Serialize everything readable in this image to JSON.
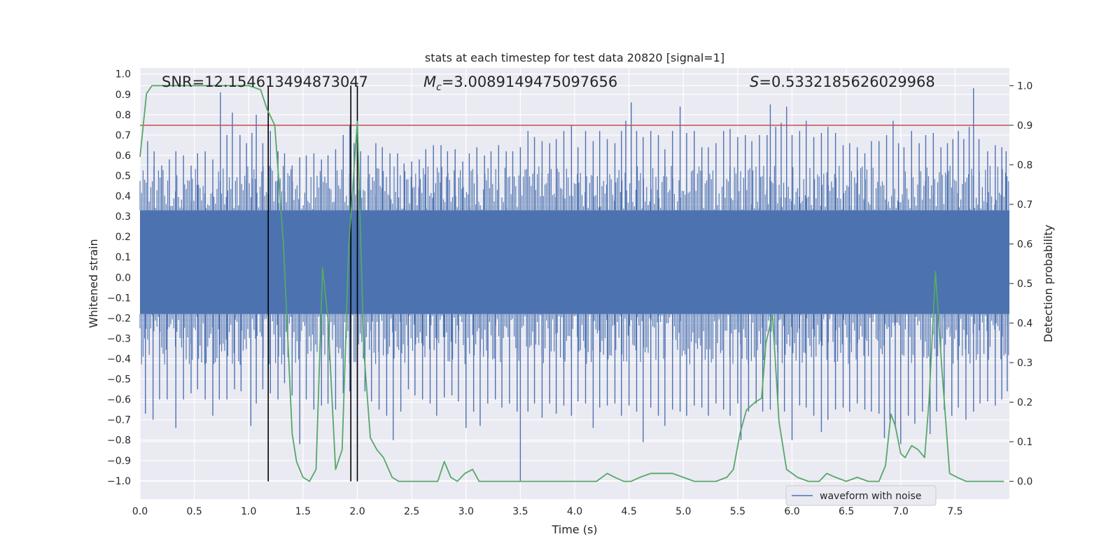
{
  "chart_data": {
    "type": "line",
    "title": "stats at each timestep for test data 20820 [signal=1]",
    "xlabel": "Time (s)",
    "ylabel": "Whitened strain",
    "y2label": "Detection probability",
    "xlim": [
      0.0,
      8.0
    ],
    "ylim": [
      -1.09,
      1.03
    ],
    "y2lim": [
      -0.045,
      1.045
    ],
    "x_ticks": [
      0.0,
      0.5,
      1.0,
      1.5,
      2.0,
      2.5,
      3.0,
      3.5,
      4.0,
      4.5,
      5.0,
      5.5,
      6.0,
      6.5,
      7.0,
      7.5
    ],
    "x_tick_labels": [
      "0.0",
      "0.5",
      "1.0",
      "1.5",
      "2.0",
      "2.5",
      "3.0",
      "3.5",
      "4.0",
      "4.5",
      "5.0",
      "5.5",
      "6.0",
      "6.5",
      "7.0",
      "7.5"
    ],
    "y_ticks": [
      1.0,
      0.9,
      0.8,
      0.7,
      0.6,
      0.5,
      0.4,
      0.3,
      0.2,
      0.1,
      0.0,
      -0.1,
      -0.2,
      -0.3,
      -0.4,
      -0.5,
      -0.6,
      -0.7,
      -0.8,
      -0.9,
      -1.0
    ],
    "y_tick_labels": [
      "1.0",
      "0.9",
      "0.8",
      "0.7",
      "0.6",
      "0.5",
      "0.4",
      "0.3",
      "0.2",
      "0.1",
      "0.0",
      "−0.1",
      "−0.2",
      "−0.3",
      "−0.4",
      "−0.5",
      "−0.6",
      "−0.7",
      "−0.8",
      "−0.9",
      "−1.0"
    ],
    "y2_ticks": [
      1.0,
      0.9,
      0.8,
      0.7,
      0.6,
      0.5,
      0.4,
      0.3,
      0.2,
      0.1,
      0.0
    ],
    "y2_tick_labels": [
      "1.0",
      "0.9",
      "0.8",
      "0.7",
      "0.6",
      "0.5",
      "0.4",
      "0.3",
      "0.2",
      "0.1",
      "0.0"
    ],
    "grid": true,
    "annotations": {
      "snr": "SNR=12.154613494873047",
      "mc_symbol": "M",
      "mc_subscript": "c",
      "mc_value": "=3.0089149475097656",
      "s_symbol": "S",
      "s_value": "=0.5332185626029968"
    },
    "threshold": {
      "value": 0.9,
      "axis": "y2",
      "color": "#c44e52"
    },
    "vertical_lines": [
      1.18,
      1.94,
      2.0
    ],
    "waveform": {
      "name": "waveform with noise",
      "color": "#4c72b0",
      "band_low": -0.18,
      "band_high": 0.33,
      "spikes": [
        [
          0.07,
          0.67
        ],
        [
          0.13,
          0.62
        ],
        [
          0.2,
          0.55
        ],
        [
          0.27,
          0.58
        ],
        [
          0.33,
          0.62
        ],
        [
          0.4,
          0.6
        ],
        [
          0.47,
          0.55
        ],
        [
          0.53,
          0.61
        ],
        [
          0.6,
          0.62
        ],
        [
          0.67,
          0.58
        ],
        [
          0.74,
          0.91
        ],
        [
          0.8,
          0.7
        ],
        [
          0.85,
          0.81
        ],
        [
          0.92,
          0.7
        ],
        [
          0.98,
          0.66
        ],
        [
          1.03,
          0.71
        ],
        [
          1.07,
          0.8
        ],
        [
          1.13,
          0.66
        ],
        [
          1.2,
          0.72
        ],
        [
          1.27,
          0.62
        ],
        [
          1.33,
          0.61
        ],
        [
          1.4,
          0.55
        ],
        [
          1.47,
          0.59
        ],
        [
          1.53,
          0.6
        ],
        [
          1.6,
          0.61
        ],
        [
          1.67,
          0.58
        ],
        [
          1.73,
          0.6
        ],
        [
          1.8,
          0.63
        ],
        [
          1.87,
          0.7
        ],
        [
          1.93,
          0.75
        ],
        [
          1.97,
          0.66
        ],
        [
          2.03,
          0.62
        ],
        [
          2.1,
          0.6
        ],
        [
          2.17,
          0.66
        ],
        [
          2.23,
          0.64
        ],
        [
          2.3,
          0.61
        ],
        [
          2.37,
          0.61
        ],
        [
          2.43,
          0.56
        ],
        [
          2.5,
          0.57
        ],
        [
          2.57,
          0.58
        ],
        [
          2.63,
          0.63
        ],
        [
          2.7,
          0.65
        ],
        [
          2.77,
          0.65
        ],
        [
          2.83,
          0.62
        ],
        [
          2.9,
          0.63
        ],
        [
          2.97,
          0.57
        ],
        [
          3.03,
          0.61
        ],
        [
          3.1,
          0.64
        ],
        [
          3.17,
          0.6
        ],
        [
          3.23,
          0.62
        ],
        [
          3.3,
          0.65
        ],
        [
          3.37,
          0.62
        ],
        [
          3.43,
          0.62
        ],
        [
          3.5,
          0.64
        ],
        [
          3.57,
          0.72
        ],
        [
          3.63,
          0.69
        ],
        [
          3.7,
          0.67
        ],
        [
          3.77,
          0.66
        ],
        [
          3.83,
          0.68
        ],
        [
          3.9,
          0.72
        ],
        [
          3.97,
          0.75
        ],
        [
          4.03,
          0.64
        ],
        [
          4.1,
          0.72
        ],
        [
          4.17,
          0.67
        ],
        [
          4.23,
          0.72
        ],
        [
          4.3,
          0.68
        ],
        [
          4.37,
          0.66
        ],
        [
          4.43,
          0.72
        ],
        [
          4.47,
          0.77
        ],
        [
          4.52,
          0.86
        ],
        [
          4.57,
          0.72
        ],
        [
          4.63,
          0.69
        ],
        [
          4.7,
          0.72
        ],
        [
          4.77,
          0.7
        ],
        [
          4.83,
          0.63
        ],
        [
          4.9,
          0.72
        ],
        [
          4.97,
          0.84
        ],
        [
          5.03,
          0.71
        ],
        [
          5.1,
          0.72
        ],
        [
          5.17,
          0.64
        ],
        [
          5.23,
          0.64
        ],
        [
          5.3,
          0.66
        ],
        [
          5.37,
          0.72
        ],
        [
          5.43,
          0.73
        ],
        [
          5.5,
          0.69
        ],
        [
          5.57,
          0.7
        ],
        [
          5.63,
          0.67
        ],
        [
          5.7,
          0.7
        ],
        [
          5.77,
          0.7
        ],
        [
          5.8,
          0.85
        ],
        [
          5.85,
          0.74
        ],
        [
          5.9,
          0.76
        ],
        [
          5.95,
          0.84
        ],
        [
          6.0,
          0.7
        ],
        [
          6.07,
          0.72
        ],
        [
          6.13,
          0.77
        ],
        [
          6.2,
          0.69
        ],
        [
          6.27,
          0.71
        ],
        [
          6.33,
          0.74
        ],
        [
          6.4,
          0.71
        ],
        [
          6.47,
          0.65
        ],
        [
          6.53,
          0.66
        ],
        [
          6.6,
          0.64
        ],
        [
          6.67,
          0.61
        ],
        [
          6.73,
          0.67
        ],
        [
          6.8,
          0.67
        ],
        [
          6.87,
          0.7
        ],
        [
          6.93,
          0.77
        ],
        [
          6.98,
          0.66
        ],
        [
          7.03,
          0.64
        ],
        [
          7.1,
          0.72
        ],
        [
          7.17,
          0.66
        ],
        [
          7.23,
          0.7
        ],
        [
          7.3,
          0.71
        ],
        [
          7.37,
          0.64
        ],
        [
          7.43,
          0.66
        ],
        [
          7.48,
          0.68
        ],
        [
          7.53,
          0.72
        ],
        [
          7.58,
          0.68
        ],
        [
          7.63,
          0.74
        ],
        [
          7.67,
          0.93
        ],
        [
          7.72,
          0.68
        ],
        [
          7.8,
          0.62
        ],
        [
          7.87,
          0.65
        ],
        [
          7.93,
          0.64
        ],
        [
          7.97,
          0.62
        ],
        [
          0.05,
          -0.67
        ],
        [
          0.12,
          -0.7
        ],
        [
          0.18,
          -0.6
        ],
        [
          0.25,
          -0.6
        ],
        [
          0.33,
          -0.74
        ],
        [
          0.4,
          -0.6
        ],
        [
          0.47,
          -0.57
        ],
        [
          0.53,
          -0.55
        ],
        [
          0.6,
          -0.6
        ],
        [
          0.67,
          -0.68
        ],
        [
          0.73,
          -0.6
        ],
        [
          0.8,
          -0.6
        ],
        [
          0.87,
          -0.55
        ],
        [
          0.93,
          -0.56
        ],
        [
          1.02,
          -0.73
        ],
        [
          1.07,
          -0.62
        ],
        [
          1.13,
          -0.55
        ],
        [
          1.2,
          -0.57
        ],
        [
          1.27,
          -0.6
        ],
        [
          1.33,
          -0.52
        ],
        [
          1.4,
          -0.58
        ],
        [
          1.47,
          -0.82
        ],
        [
          1.53,
          -0.6
        ],
        [
          1.6,
          -0.65
        ],
        [
          1.67,
          -0.63
        ],
        [
          1.73,
          -0.62
        ],
        [
          1.8,
          -0.65
        ],
        [
          1.87,
          -0.57
        ],
        [
          1.93,
          -0.56
        ],
        [
          2.0,
          -0.6
        ],
        [
          2.07,
          -0.56
        ],
        [
          2.13,
          -0.61
        ],
        [
          2.2,
          -0.65
        ],
        [
          2.27,
          -0.68
        ],
        [
          2.33,
          -0.8
        ],
        [
          2.4,
          -0.66
        ],
        [
          2.47,
          -0.55
        ],
        [
          2.53,
          -0.58
        ],
        [
          2.6,
          -0.6
        ],
        [
          2.67,
          -0.62
        ],
        [
          2.73,
          -0.68
        ],
        [
          2.8,
          -0.59
        ],
        [
          2.87,
          -0.58
        ],
        [
          2.93,
          -0.61
        ],
        [
          3.0,
          -0.74
        ],
        [
          3.07,
          -0.66
        ],
        [
          3.13,
          -0.73
        ],
        [
          3.2,
          -0.62
        ],
        [
          3.27,
          -0.6
        ],
        [
          3.33,
          -0.64
        ],
        [
          3.4,
          -0.62
        ],
        [
          3.47,
          -0.66
        ],
        [
          3.5,
          -1.0
        ],
        [
          3.57,
          -0.66
        ],
        [
          3.63,
          -0.62
        ],
        [
          3.7,
          -0.69
        ],
        [
          3.77,
          -0.62
        ],
        [
          3.83,
          -0.67
        ],
        [
          3.9,
          -0.63
        ],
        [
          3.97,
          -0.68
        ],
        [
          4.03,
          -0.61
        ],
        [
          4.1,
          -0.62
        ],
        [
          4.17,
          -0.74
        ],
        [
          4.23,
          -0.64
        ],
        [
          4.3,
          -0.63
        ],
        [
          4.37,
          -0.62
        ],
        [
          4.43,
          -0.68
        ],
        [
          4.5,
          -0.63
        ],
        [
          4.57,
          -0.66
        ],
        [
          4.63,
          -0.81
        ],
        [
          4.7,
          -0.64
        ],
        [
          4.77,
          -0.68
        ],
        [
          4.83,
          -0.73
        ],
        [
          4.9,
          -0.65
        ],
        [
          4.97,
          -0.66
        ],
        [
          5.03,
          -0.68
        ],
        [
          5.1,
          -0.63
        ],
        [
          5.17,
          -0.64
        ],
        [
          5.23,
          -0.68
        ],
        [
          5.3,
          -0.62
        ],
        [
          5.37,
          -0.65
        ],
        [
          5.43,
          -0.68
        ],
        [
          5.5,
          -0.62
        ],
        [
          5.53,
          -0.8
        ],
        [
          5.6,
          -0.66
        ],
        [
          5.67,
          -0.62
        ],
        [
          5.73,
          -0.66
        ],
        [
          5.8,
          -0.65
        ],
        [
          5.87,
          -0.63
        ],
        [
          5.93,
          -0.66
        ],
        [
          6.0,
          -0.8
        ],
        [
          6.07,
          -0.63
        ],
        [
          6.13,
          -0.64
        ],
        [
          6.2,
          -0.68
        ],
        [
          6.27,
          -0.76
        ],
        [
          6.33,
          -0.7
        ],
        [
          6.4,
          -0.65
        ],
        [
          6.47,
          -0.64
        ],
        [
          6.53,
          -0.66
        ],
        [
          6.6,
          -0.62
        ],
        [
          6.67,
          -0.65
        ],
        [
          6.73,
          -0.66
        ],
        [
          6.8,
          -0.67
        ],
        [
          6.85,
          -0.79
        ],
        [
          6.9,
          -0.7
        ],
        [
          6.95,
          -0.74
        ],
        [
          7.0,
          -0.82
        ],
        [
          7.07,
          -0.68
        ],
        [
          7.13,
          -0.72
        ],
        [
          7.2,
          -0.66
        ],
        [
          7.27,
          -0.77
        ],
        [
          7.33,
          -0.66
        ],
        [
          7.4,
          -0.65
        ],
        [
          7.47,
          -0.68
        ],
        [
          7.53,
          -0.64
        ],
        [
          7.6,
          -0.7
        ],
        [
          7.67,
          -0.66
        ],
        [
          7.73,
          -0.62
        ],
        [
          7.8,
          -0.61
        ],
        [
          7.87,
          -0.63
        ],
        [
          7.93,
          -0.6
        ],
        [
          7.98,
          -0.56
        ]
      ]
    },
    "detection": {
      "name": "detection probability",
      "color": "#55a868",
      "x": [
        0.0,
        0.06,
        0.11,
        0.17,
        0.5,
        1.0,
        1.11,
        1.17,
        1.24,
        1.32,
        1.4,
        1.44,
        1.5,
        1.56,
        1.62,
        1.68,
        1.73,
        1.8,
        1.86,
        1.92,
        2.0,
        2.06,
        2.12,
        2.18,
        2.24,
        2.32,
        2.38,
        2.48,
        2.6,
        2.74,
        2.8,
        2.86,
        2.92,
        2.99,
        3.06,
        3.12,
        3.2,
        3.3,
        3.4,
        3.5,
        3.8,
        4.1,
        4.2,
        4.3,
        4.37,
        4.45,
        4.52,
        4.6,
        4.7,
        4.8,
        4.9,
        5.0,
        5.1,
        5.2,
        5.3,
        5.4,
        5.46,
        5.52,
        5.58,
        5.66,
        5.72,
        5.76,
        5.82,
        5.88,
        5.95,
        6.05,
        6.15,
        6.25,
        6.32,
        6.4,
        6.5,
        6.6,
        6.7,
        6.8,
        6.86,
        6.91,
        6.95,
        7.0,
        7.04,
        7.1,
        7.16,
        7.22,
        7.26,
        7.32,
        7.38,
        7.45,
        7.52,
        7.6,
        7.7,
        7.8,
        7.9,
        7.95
      ],
      "y": [
        0.82,
        0.98,
        1.0,
        1.0,
        1.0,
        1.0,
        0.99,
        0.94,
        0.9,
        0.6,
        0.12,
        0.05,
        0.01,
        0.0,
        0.03,
        0.54,
        0.41,
        0.03,
        0.08,
        0.59,
        0.91,
        0.33,
        0.11,
        0.08,
        0.06,
        0.01,
        0.0,
        0.0,
        0.0,
        0.0,
        0.05,
        0.01,
        0.0,
        0.02,
        0.03,
        0.0,
        0.0,
        0.0,
        0.0,
        0.0,
        0.0,
        0.0,
        0.0,
        0.02,
        0.01,
        0.0,
        0.0,
        0.01,
        0.02,
        0.02,
        0.02,
        0.01,
        0.0,
        0.0,
        0.0,
        0.01,
        0.03,
        0.12,
        0.18,
        0.2,
        0.21,
        0.35,
        0.42,
        0.15,
        0.03,
        0.01,
        0.0,
        0.0,
        0.02,
        0.01,
        0.0,
        0.01,
        0.0,
        0.0,
        0.04,
        0.17,
        0.14,
        0.07,
        0.06,
        0.09,
        0.08,
        0.06,
        0.2,
        0.53,
        0.28,
        0.02,
        0.01,
        0.0,
        0.0,
        0.0,
        0.0,
        0.0
      ]
    },
    "legend": {
      "entries": [
        "waveform with noise"
      ],
      "placement": "lower-right"
    }
  }
}
